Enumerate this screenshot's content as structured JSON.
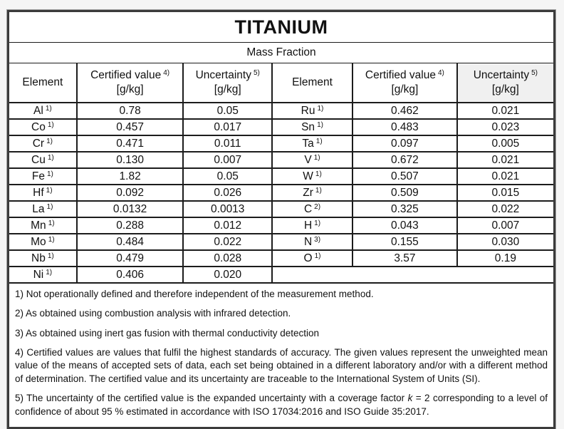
{
  "title": "TITANIUM",
  "subtitle": "Mass Fraction",
  "columns": {
    "element": "Element",
    "certified_value": "Certified value",
    "certified_note": "4)",
    "uncertainty": "Uncertainty",
    "uncertainty_note": "5)",
    "unit": "[g/kg]"
  },
  "rows": [
    {
      "left": {
        "element": "Al",
        "note": "1)",
        "certified": "0.78",
        "uncertainty": "0.05"
      },
      "right": {
        "element": "Ru",
        "note": "1)",
        "certified": "0.462",
        "uncertainty": "0.021"
      }
    },
    {
      "left": {
        "element": "Co",
        "note": "1)",
        "certified": "0.457",
        "uncertainty": "0.017"
      },
      "right": {
        "element": "Sn",
        "note": "1)",
        "certified": "0.483",
        "uncertainty": "0.023"
      }
    },
    {
      "left": {
        "element": "Cr",
        "note": "1)",
        "certified": "0.471",
        "uncertainty": "0.011"
      },
      "right": {
        "element": "Ta",
        "note": "1)",
        "certified": "0.097",
        "uncertainty": "0.005"
      }
    },
    {
      "left": {
        "element": "Cu",
        "note": "1)",
        "certified": "0.130",
        "uncertainty": "0.007"
      },
      "right": {
        "element": "V",
        "note": "1)",
        "certified": "0.672",
        "uncertainty": "0.021"
      }
    },
    {
      "left": {
        "element": "Fe",
        "note": "1)",
        "certified": "1.82",
        "uncertainty": "0.05"
      },
      "right": {
        "element": "W",
        "note": "1)",
        "certified": "0.507",
        "uncertainty": "0.021"
      }
    },
    {
      "left": {
        "element": "Hf",
        "note": "1)",
        "certified": "0.092",
        "uncertainty": "0.026"
      },
      "right": {
        "element": "Zr",
        "note": "1)",
        "certified": "0.509",
        "uncertainty": "0.015"
      }
    },
    {
      "left": {
        "element": "La",
        "note": "1)",
        "certified": "0.0132",
        "uncertainty": "0.0013"
      },
      "right": {
        "element": "C",
        "note": "2)",
        "certified": "0.325",
        "uncertainty": "0.022"
      }
    },
    {
      "left": {
        "element": "Mn",
        "note": "1)",
        "certified": "0.288",
        "uncertainty": "0.012"
      },
      "right": {
        "element": "H",
        "note": "1)",
        "certified": "0.043",
        "uncertainty": "0.007"
      }
    },
    {
      "left": {
        "element": "Mo",
        "note": "1)",
        "certified": "0.484",
        "uncertainty": "0.022"
      },
      "right": {
        "element": "N",
        "note": "3)",
        "certified": "0.155",
        "uncertainty": "0.030"
      }
    },
    {
      "left": {
        "element": "Nb",
        "note": "1)",
        "certified": "0.479",
        "uncertainty": "0.028"
      },
      "right": {
        "element": "O",
        "note": "1)",
        "certified": "3.57",
        "uncertainty": "0.19"
      }
    },
    {
      "left": {
        "element": "Ni",
        "note": "1)",
        "certified": "0.406",
        "uncertainty": "0.020"
      },
      "right": null
    }
  ],
  "footnotes": [
    {
      "text": "1) Not operationally defined and therefore independent of the measurement method.",
      "justify": false
    },
    {
      "text": "2) As obtained using combustion analysis with infrared detection.",
      "justify": false
    },
    {
      "text": "3) As obtained using inert gas fusion with thermal conductivity detection",
      "justify": false
    },
    {
      "text": "4) Certified values are values that fulfil the highest standards of accuracy. The given values represent the unweighted mean value of the means of accepted sets of data, each set being obtained in a different laboratory and/or with a different method of determination. The certified value and its uncertainty are traceable to the International System of Units (SI).",
      "justify": true
    },
    {
      "parts": [
        "5) The uncertainty of the certified value is the expanded uncertainty with a coverage factor ",
        "k",
        " = 2 corresponding to a level of confidence of about 95 % estimated in accordance with ISO 17034:2016 and ISO Guide 35:2017."
      ],
      "italic_index": 1,
      "justify": true
    }
  ],
  "colors": {
    "border": "#1c1c1c",
    "shaded_header_bg": "#f0f0f0",
    "page_bg": "#f5f5f5"
  }
}
